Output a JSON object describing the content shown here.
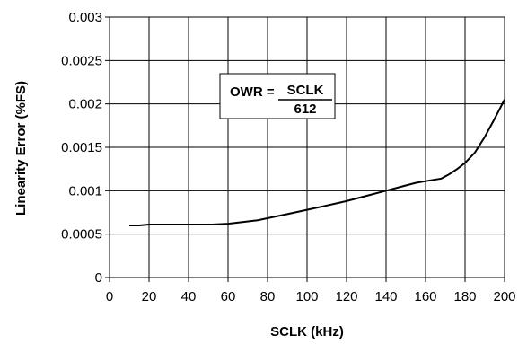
{
  "chart_data": {
    "type": "line",
    "xlabel": "SCLK (kHz)",
    "ylabel": "Linearity Error (%FS)",
    "xlim": [
      0,
      200
    ],
    "ylim": [
      0,
      0.003
    ],
    "x_ticks": [
      0,
      20,
      40,
      60,
      80,
      100,
      120,
      140,
      160,
      180,
      200
    ],
    "y_ticks": [
      "0",
      "0.0005",
      "0.001",
      "0.0015",
      "0.002",
      "0.0025",
      "0.003"
    ],
    "grid": true,
    "series": [
      {
        "x": [
          10,
          15,
          20,
          30,
          40,
          52,
          60,
          75,
          90,
          100,
          110,
          120,
          130,
          140,
          150,
          155,
          160,
          168,
          172,
          176,
          180,
          185,
          190,
          195,
          200
        ],
        "y": [
          0.0006,
          0.0006,
          0.00061,
          0.00061,
          0.00061,
          0.00061,
          0.00062,
          0.00066,
          0.00073,
          0.00078,
          0.00083,
          0.00088,
          0.00094,
          0.001,
          0.00106,
          0.00109,
          0.00111,
          0.00114,
          0.00119,
          0.00125,
          0.00132,
          0.00144,
          0.00162,
          0.00183,
          0.00205
        ]
      }
    ],
    "annotation": {
      "lhs": "OWR =",
      "numerator": "SCLK",
      "denominator": "612"
    }
  }
}
